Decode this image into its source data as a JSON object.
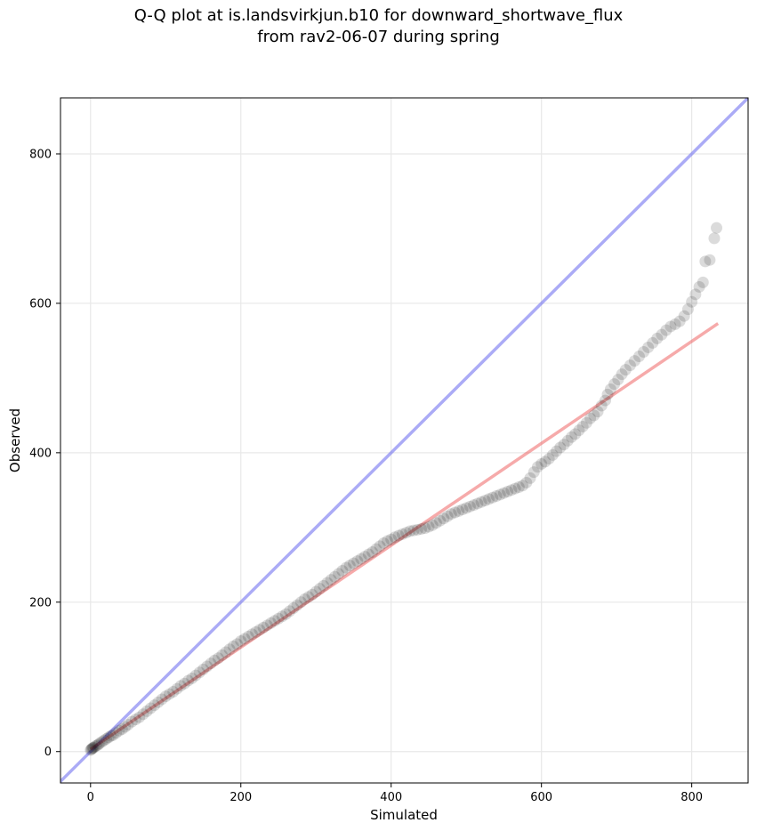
{
  "chart_data": {
    "type": "scatter",
    "title_line1": "Q-Q plot at is.landsvirkjun.b10 for downward_shortwave_flux",
    "title_line2": "from rav2-06-07 during spring",
    "xlabel": "Simulated",
    "ylabel": "Observed",
    "xlim": [
      -40,
      875
    ],
    "ylim": [
      -42,
      875
    ],
    "xticks": [
      0,
      200,
      400,
      600,
      800
    ],
    "yticks": [
      0,
      200,
      400,
      600,
      800
    ],
    "grid": true,
    "colors": {
      "points": "#000000",
      "identity_line": "#6666ee",
      "fit_line": "#ee5555"
    },
    "fit_line": {
      "x": [
        0,
        835
      ],
      "y": [
        3,
        573
      ]
    },
    "identity_line": {
      "x": [
        -40,
        875
      ],
      "y": [
        -40,
        875
      ]
    },
    "points": [
      [
        0,
        2
      ],
      [
        1,
        3
      ],
      [
        2,
        4
      ],
      [
        3,
        5
      ],
      [
        4,
        5
      ],
      [
        6,
        7
      ],
      [
        8,
        8
      ],
      [
        10,
        9
      ],
      [
        12,
        11
      ],
      [
        15,
        13
      ],
      [
        18,
        15
      ],
      [
        21,
        17
      ],
      [
        24,
        19
      ],
      [
        27,
        21
      ],
      [
        30,
        22
      ],
      [
        34,
        25
      ],
      [
        38,
        28
      ],
      [
        42,
        30
      ],
      [
        46,
        33
      ],
      [
        50,
        36
      ],
      [
        55,
        40
      ],
      [
        60,
        43
      ],
      [
        65,
        46
      ],
      [
        70,
        50
      ],
      [
        75,
        54
      ],
      [
        80,
        58
      ],
      [
        85,
        62
      ],
      [
        90,
        66
      ],
      [
        95,
        70
      ],
      [
        100,
        74
      ],
      [
        105,
        77
      ],
      [
        110,
        80
      ],
      [
        115,
        84
      ],
      [
        120,
        88
      ],
      [
        125,
        91
      ],
      [
        130,
        95
      ],
      [
        135,
        98
      ],
      [
        140,
        102
      ],
      [
        145,
        106
      ],
      [
        150,
        110
      ],
      [
        155,
        114
      ],
      [
        160,
        118
      ],
      [
        165,
        122
      ],
      [
        170,
        125
      ],
      [
        175,
        129
      ],
      [
        180,
        133
      ],
      [
        185,
        137
      ],
      [
        190,
        141
      ],
      [
        195,
        144
      ],
      [
        200,
        148
      ],
      [
        205,
        151
      ],
      [
        210,
        154
      ],
      [
        215,
        157
      ],
      [
        220,
        160
      ],
      [
        225,
        163
      ],
      [
        230,
        166
      ],
      [
        235,
        169
      ],
      [
        240,
        172
      ],
      [
        245,
        175
      ],
      [
        250,
        178
      ],
      [
        255,
        181
      ],
      [
        260,
        184
      ],
      [
        265,
        188
      ],
      [
        270,
        192
      ],
      [
        275,
        196
      ],
      [
        280,
        200
      ],
      [
        285,
        204
      ],
      [
        290,
        207
      ],
      [
        295,
        210
      ],
      [
        300,
        214
      ],
      [
        305,
        218
      ],
      [
        310,
        222
      ],
      [
        315,
        226
      ],
      [
        320,
        230
      ],
      [
        325,
        234
      ],
      [
        330,
        238
      ],
      [
        335,
        242
      ],
      [
        340,
        246
      ],
      [
        345,
        249
      ],
      [
        350,
        252
      ],
      [
        355,
        255
      ],
      [
        360,
        258
      ],
      [
        365,
        261
      ],
      [
        370,
        264
      ],
      [
        375,
        267
      ],
      [
        380,
        271
      ],
      [
        385,
        275
      ],
      [
        390,
        279
      ],
      [
        395,
        282
      ],
      [
        400,
        284
      ],
      [
        405,
        287
      ],
      [
        410,
        289
      ],
      [
        415,
        291
      ],
      [
        420,
        293
      ],
      [
        425,
        295
      ],
      [
        430,
        296
      ],
      [
        435,
        297
      ],
      [
        440,
        298
      ],
      [
        445,
        299
      ],
      [
        450,
        301
      ],
      [
        455,
        303
      ],
      [
        460,
        306
      ],
      [
        465,
        309
      ],
      [
        470,
        312
      ],
      [
        475,
        315
      ],
      [
        480,
        318
      ],
      [
        485,
        320
      ],
      [
        490,
        322
      ],
      [
        495,
        324
      ],
      [
        500,
        326
      ],
      [
        505,
        328
      ],
      [
        510,
        330
      ],
      [
        515,
        332
      ],
      [
        520,
        334
      ],
      [
        525,
        336
      ],
      [
        530,
        338
      ],
      [
        535,
        340
      ],
      [
        540,
        342
      ],
      [
        545,
        344
      ],
      [
        550,
        346
      ],
      [
        555,
        348
      ],
      [
        560,
        350
      ],
      [
        565,
        352
      ],
      [
        570,
        354
      ],
      [
        575,
        356
      ],
      [
        580,
        360
      ],
      [
        585,
        366
      ],
      [
        590,
        374
      ],
      [
        595,
        381
      ],
      [
        600,
        385
      ],
      [
        605,
        388
      ],
      [
        610,
        392
      ],
      [
        615,
        397
      ],
      [
        620,
        402
      ],
      [
        625,
        407
      ],
      [
        630,
        411
      ],
      [
        635,
        416
      ],
      [
        640,
        421
      ],
      [
        645,
        425
      ],
      [
        650,
        430
      ],
      [
        655,
        435
      ],
      [
        660,
        440
      ],
      [
        665,
        446
      ],
      [
        670,
        450
      ],
      [
        675,
        455
      ],
      [
        680,
        463
      ],
      [
        685,
        470
      ],
      [
        688,
        478
      ],
      [
        692,
        485
      ],
      [
        697,
        492
      ],
      [
        702,
        498
      ],
      [
        707,
        505
      ],
      [
        712,
        511
      ],
      [
        718,
        517
      ],
      [
        724,
        523
      ],
      [
        730,
        529
      ],
      [
        736,
        535
      ],
      [
        742,
        541
      ],
      [
        748,
        547
      ],
      [
        754,
        553
      ],
      [
        760,
        558
      ],
      [
        766,
        564
      ],
      [
        772,
        569
      ],
      [
        778,
        572
      ],
      [
        784,
        576
      ],
      [
        790,
        583
      ],
      [
        795,
        592
      ],
      [
        800,
        602
      ],
      [
        805,
        612
      ],
      [
        810,
        622
      ],
      [
        815,
        628
      ],
      [
        818,
        656
      ],
      [
        824,
        658
      ],
      [
        830,
        687
      ],
      [
        833,
        701
      ]
    ]
  }
}
